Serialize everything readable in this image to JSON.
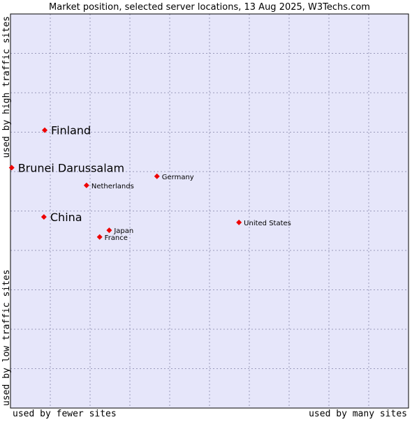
{
  "chart_data": {
    "type": "scatter",
    "title": "Market position, selected server locations, 13 Aug 2025, W3Techs.com",
    "xlabel_left": "used by fewer sites",
    "xlabel_right": "used by many sites",
    "ylabel_bottom": "used by low traffic sites",
    "ylabel_top": "used by high traffic sites",
    "xlim": [
      0,
      100
    ],
    "ylim": [
      0,
      100
    ],
    "grid": true,
    "colors": {
      "plot_bg": "#e6e6fa",
      "grid": "#9a9abb",
      "point": "#ee0000",
      "axis": "#000000"
    },
    "points": [
      {
        "label": "Finland",
        "x": 8.6,
        "y": 70.5,
        "highlight": true
      },
      {
        "label": "Brunei Darussalam",
        "x": 0.3,
        "y": 61.0,
        "highlight": true
      },
      {
        "label": "China",
        "x": 8.4,
        "y": 48.5,
        "highlight": true
      },
      {
        "label": "Germany",
        "x": 36.8,
        "y": 58.8,
        "highlight": false
      },
      {
        "label": "Netherlands",
        "x": 19.1,
        "y": 56.5,
        "highlight": false
      },
      {
        "label": "United States",
        "x": 57.4,
        "y": 47.1,
        "highlight": false
      },
      {
        "label": "Japan",
        "x": 24.8,
        "y": 45.1,
        "highlight": false
      },
      {
        "label": "France",
        "x": 22.4,
        "y": 43.4,
        "highlight": false
      }
    ]
  }
}
